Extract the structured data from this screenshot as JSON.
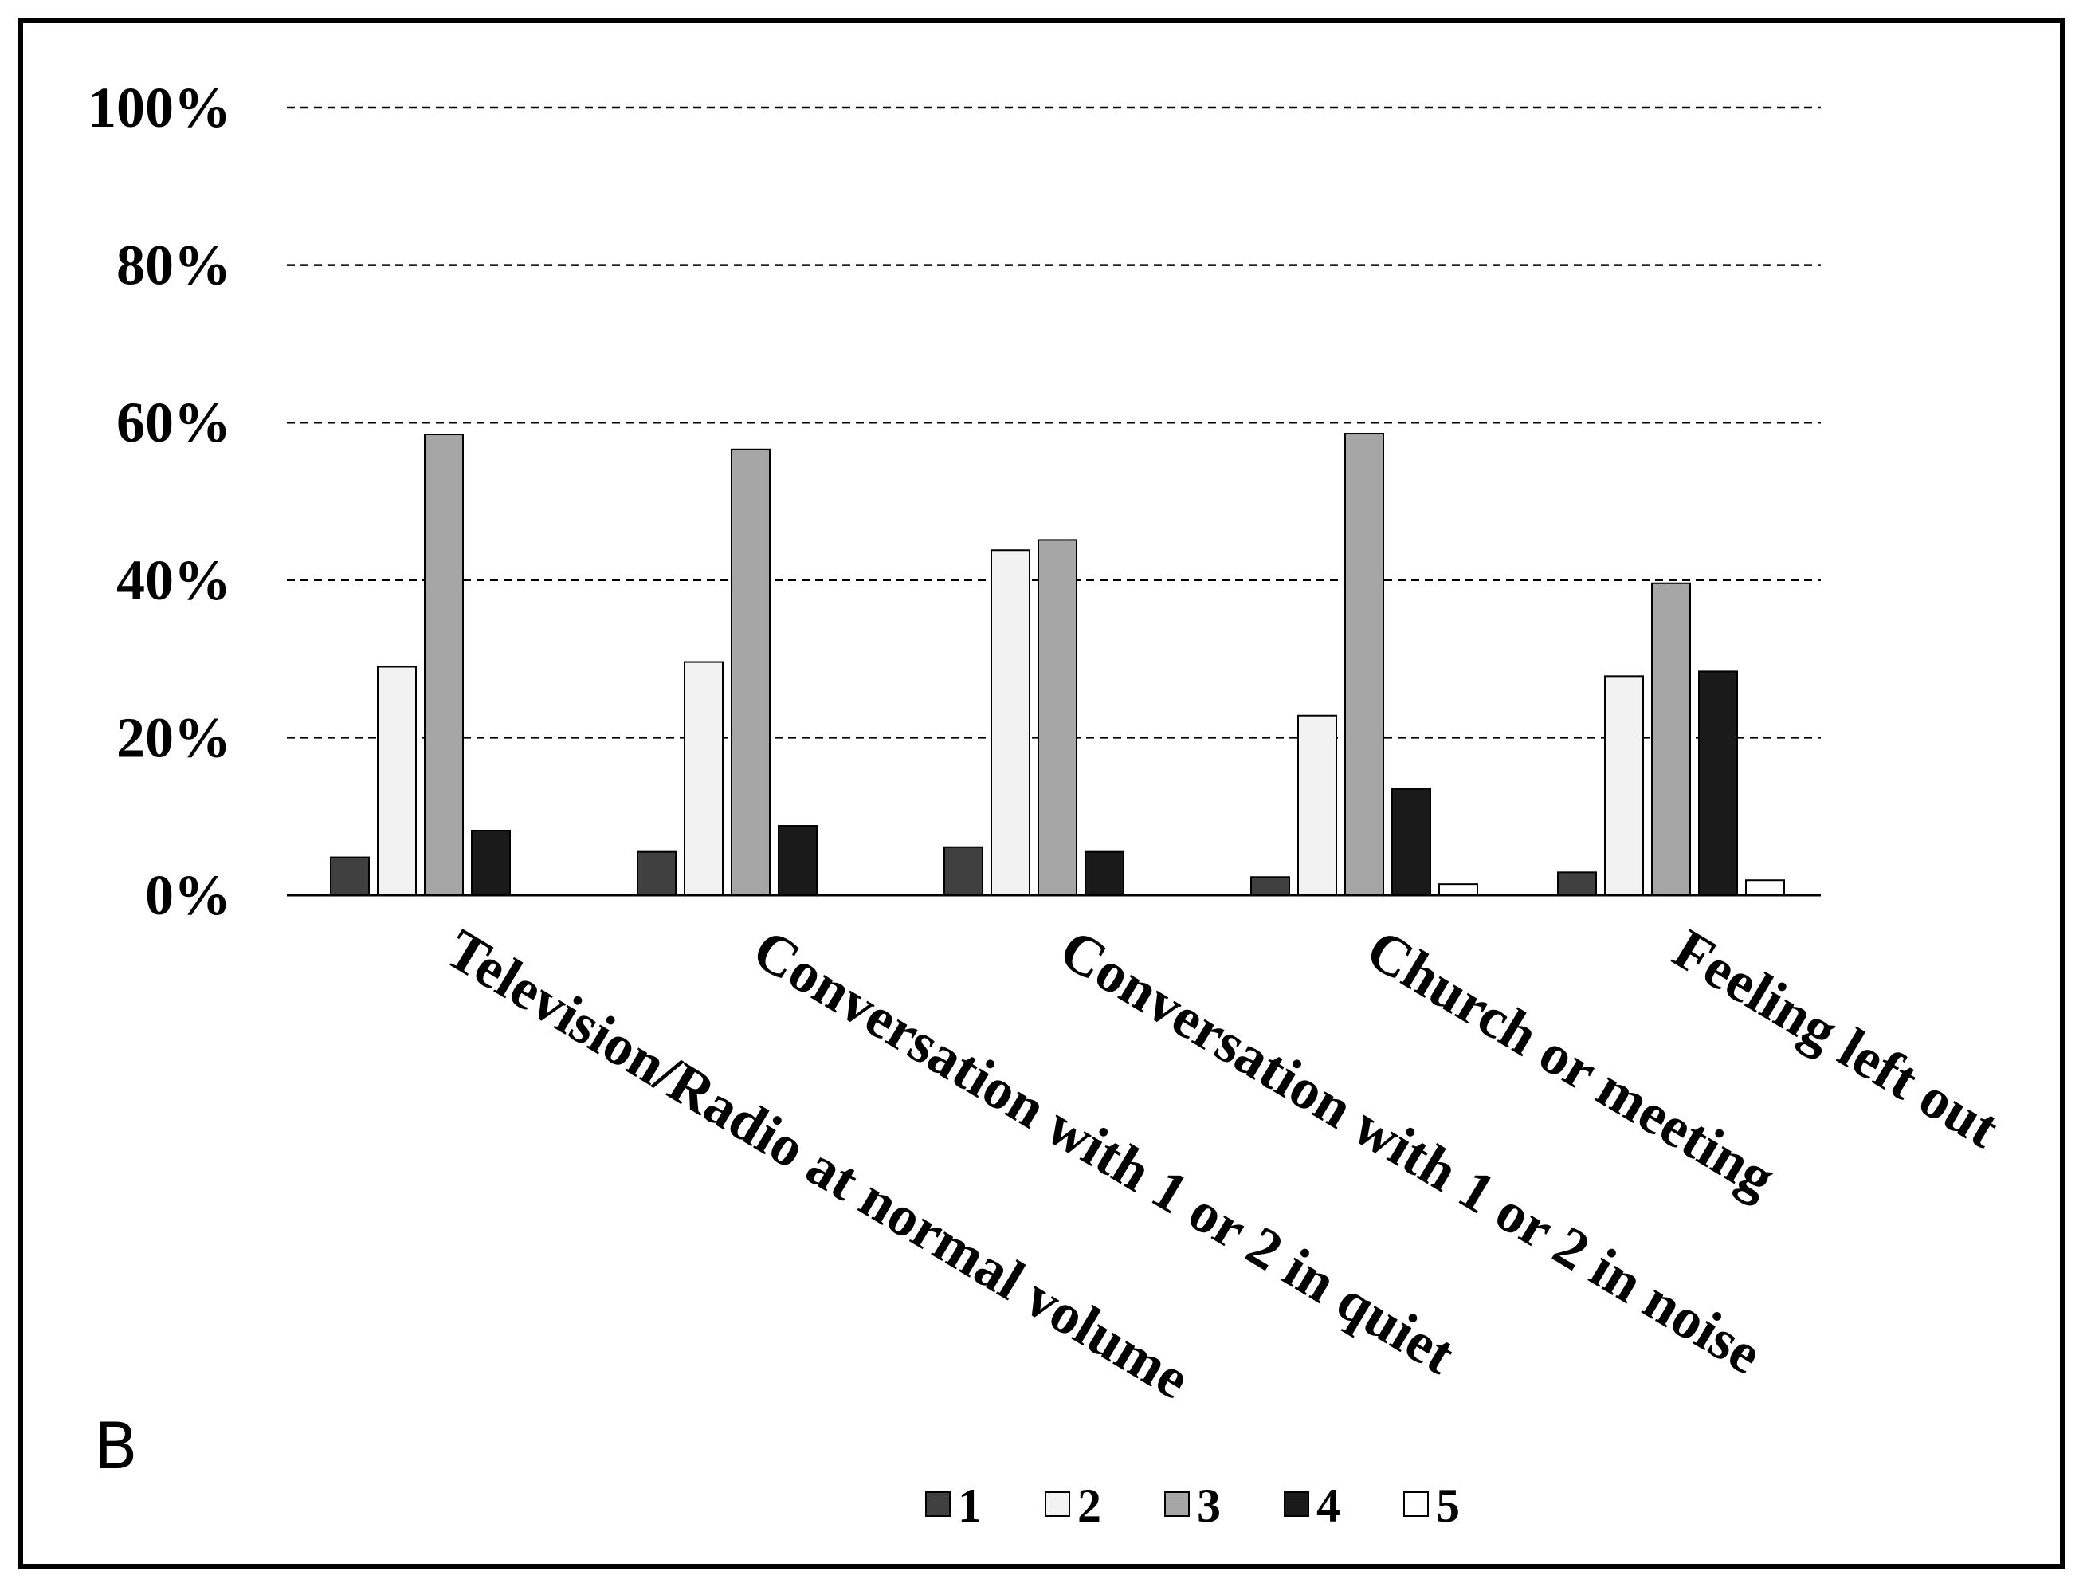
{
  "panel_label": "B",
  "chart_data": {
    "type": "bar",
    "categories": [
      "Television/Radio at normal volume",
      "Conversation with 1 or 2 in quiet",
      "Conversation with 1 or 2 in noise",
      "Church or meeting",
      "Feeling left out"
    ],
    "series": [
      {
        "name": "1",
        "values": [
          4.8,
          5.5,
          6.1,
          2.3,
          2.9
        ],
        "color": "#404040"
      },
      {
        "name": "2",
        "values": [
          29,
          29.6,
          43.8,
          22.8,
          27.8
        ],
        "color": "#f2f2f2"
      },
      {
        "name": "3",
        "values": [
          58.5,
          56.6,
          45.1,
          58.6,
          39.6
        ],
        "color": "#a6a6a6"
      },
      {
        "name": "4",
        "values": [
          8.2,
          8.8,
          5.5,
          13.5,
          28.4
        ],
        "color": "#1a1a1a"
      },
      {
        "name": "5",
        "values": [
          null,
          null,
          null,
          1.4,
          1.9
        ],
        "color": "#ffffff"
      }
    ],
    "ylim": [
      0,
      100
    ],
    "yticks": [
      "0%",
      "20%",
      "40%",
      "60%",
      "80%",
      "100%"
    ],
    "ytick_values": [
      0,
      20,
      40,
      60,
      80,
      100
    ],
    "grid": "dashed horizontal",
    "legend": "bottom-center"
  }
}
